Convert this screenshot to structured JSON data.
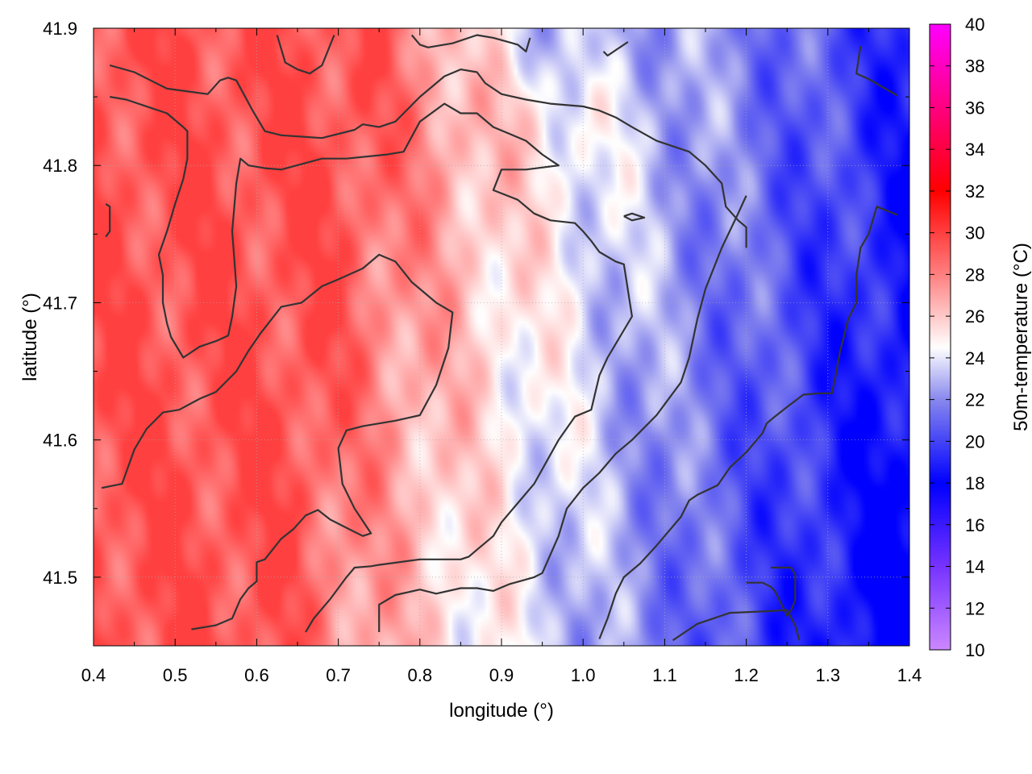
{
  "chart_data": {
    "type": "heatmap",
    "title": "",
    "xlabel": "longitude (°)",
    "ylabel": "latitude (°)",
    "colorbar_label": "50m-temperature (°C)",
    "xlim": [
      0.4,
      1.4
    ],
    "ylim": [
      41.45,
      41.9
    ],
    "x_ticks": [
      "0.4",
      "0.5",
      "0.6",
      "0.7",
      "0.8",
      "0.9",
      "1.0",
      "1.1",
      "1.2",
      "1.3",
      "1.4"
    ],
    "y_ticks": [
      "41.5",
      "41.6",
      "41.7",
      "41.8",
      "41.9"
    ],
    "colorbar_range": [
      10,
      40
    ],
    "colorbar_ticks": [
      "10",
      "12",
      "14",
      "16",
      "18",
      "20",
      "22",
      "24",
      "26",
      "28",
      "30",
      "32",
      "34",
      "36",
      "38",
      "40"
    ],
    "grid": true,
    "colormap_stops": [
      {
        "value": 10,
        "color": "#cc88ff"
      },
      {
        "value": 14,
        "color": "#7733ff"
      },
      {
        "value": 18,
        "color": "#0000ff"
      },
      {
        "value": 22,
        "color": "#8888ee"
      },
      {
        "value": 24.5,
        "color": "#ffffff"
      },
      {
        "value": 28,
        "color": "#ff8080"
      },
      {
        "value": 32,
        "color": "#ff0000"
      },
      {
        "value": 36,
        "color": "#ff0080"
      },
      {
        "value": 40,
        "color": "#ff00ff"
      }
    ],
    "field_summary": {
      "warm_core": {
        "lon": 0.68,
        "lat": 41.66,
        "value": 29.5
      },
      "cool_core": {
        "lon": 1.32,
        "lat": 41.47,
        "value": 18.5
      },
      "range": [
        18,
        30
      ]
    },
    "contours": [
      {
        "level": 26,
        "points": [
          [
            0.42,
            41.873
          ],
          [
            0.45,
            41.868
          ],
          [
            0.47,
            41.862
          ],
          [
            0.49,
            41.856
          ],
          [
            0.54,
            41.852
          ],
          [
            0.555,
            41.862
          ],
          [
            0.565,
            41.864
          ],
          [
            0.575,
            41.862
          ],
          [
            0.595,
            41.84
          ],
          [
            0.61,
            41.825
          ],
          [
            0.63,
            41.822
          ],
          [
            0.68,
            41.82
          ],
          [
            0.72,
            41.826
          ],
          [
            0.73,
            41.83
          ],
          [
            0.75,
            41.828
          ],
          [
            0.77,
            41.832
          ],
          [
            0.78,
            41.838
          ],
          [
            0.8,
            41.85
          ],
          [
            0.83,
            41.865
          ],
          [
            0.85,
            41.87
          ],
          [
            0.87,
            41.868
          ],
          [
            0.88,
            41.86
          ],
          [
            0.9,
            41.852
          ],
          [
            0.93,
            41.848
          ],
          [
            0.96,
            41.845
          ],
          [
            1.0,
            41.843
          ],
          [
            1.02,
            41.84
          ],
          [
            1.04,
            41.835
          ],
          [
            1.06,
            41.828
          ],
          [
            1.09,
            41.818
          ],
          [
            1.13,
            41.81
          ],
          [
            1.15,
            41.8
          ],
          [
            1.17,
            41.787
          ],
          [
            1.175,
            41.77
          ],
          [
            1.19,
            41.76
          ],
          [
            1.2,
            41.755
          ],
          [
            1.2,
            41.74
          ]
        ]
      },
      {
        "level": 26,
        "points": [
          [
            0.42,
            41.85
          ],
          [
            0.44,
            41.848
          ],
          [
            0.46,
            41.844
          ],
          [
            0.49,
            41.838
          ],
          [
            0.51,
            41.828
          ],
          [
            0.515,
            41.825
          ],
          [
            0.515,
            41.805
          ],
          [
            0.51,
            41.79
          ],
          [
            0.5,
            41.772
          ],
          [
            0.49,
            41.752
          ],
          [
            0.48,
            41.735
          ],
          [
            0.485,
            41.72
          ],
          [
            0.485,
            41.7
          ],
          [
            0.49,
            41.685
          ],
          [
            0.495,
            41.675
          ],
          [
            0.51,
            41.66
          ],
          [
            0.53,
            41.668
          ],
          [
            0.55,
            41.672
          ],
          [
            0.565,
            41.676
          ],
          [
            0.57,
            41.69
          ],
          [
            0.575,
            41.712
          ],
          [
            0.57,
            41.752
          ],
          [
            0.575,
            41.787
          ],
          [
            0.58,
            41.805
          ],
          [
            0.59,
            41.8
          ],
          [
            0.61,
            41.798
          ],
          [
            0.63,
            41.797
          ],
          [
            0.68,
            41.805
          ],
          [
            0.71,
            41.805
          ],
          [
            0.76,
            41.808
          ],
          [
            0.78,
            41.81
          ],
          [
            0.8,
            41.832
          ],
          [
            0.83,
            41.845
          ],
          [
            0.85,
            41.838
          ],
          [
            0.87,
            41.838
          ],
          [
            0.89,
            41.828
          ],
          [
            0.93,
            41.818
          ],
          [
            0.95,
            41.808
          ],
          [
            0.97,
            41.8
          ],
          [
            0.93,
            41.797
          ],
          [
            0.9,
            41.797
          ],
          [
            0.89,
            41.782
          ],
          [
            0.92,
            41.775
          ],
          [
            0.94,
            41.765
          ],
          [
            0.96,
            41.76
          ],
          [
            0.99,
            41.758
          ],
          [
            1.0,
            41.752
          ],
          [
            1.01,
            41.745
          ],
          [
            1.02,
            41.737
          ],
          [
            1.04,
            41.73
          ],
          [
            1.05,
            41.728
          ],
          [
            1.06,
            41.69
          ],
          [
            1.05,
            41.68
          ],
          [
            1.03,
            41.66
          ],
          [
            1.02,
            41.647
          ],
          [
            1.01,
            41.622
          ],
          [
            0.99,
            41.617
          ],
          [
            0.97,
            41.6
          ],
          [
            0.94,
            41.568
          ],
          [
            0.92,
            41.554
          ],
          [
            0.9,
            41.54
          ],
          [
            0.89,
            41.53
          ],
          [
            0.87,
            41.52
          ],
          [
            0.86,
            41.515
          ],
          [
            0.85,
            41.513
          ],
          [
            0.8,
            41.513
          ],
          [
            0.75,
            41.509
          ],
          [
            0.74,
            41.508
          ],
          [
            0.72,
            41.507
          ],
          [
            0.71,
            41.5
          ],
          [
            0.69,
            41.484
          ],
          [
            0.67,
            41.47
          ],
          [
            0.66,
            41.46
          ]
        ]
      },
      {
        "level": 26,
        "points": [
          [
            0.415,
            41.772
          ],
          [
            0.42,
            41.77
          ],
          [
            0.42,
            41.752
          ],
          [
            0.415,
            41.748
          ]
        ]
      },
      {
        "level": 26,
        "points": [
          [
            0.41,
            41.565
          ],
          [
            0.435,
            41.568
          ],
          [
            0.45,
            41.593
          ],
          [
            0.465,
            41.608
          ],
          [
            0.485,
            41.62
          ],
          [
            0.505,
            41.622
          ],
          [
            0.53,
            41.63
          ],
          [
            0.55,
            41.635
          ],
          [
            0.575,
            41.65
          ],
          [
            0.59,
            41.665
          ],
          [
            0.605,
            41.678
          ],
          [
            0.63,
            41.697
          ],
          [
            0.655,
            41.7
          ],
          [
            0.68,
            41.712
          ],
          [
            0.7,
            41.717
          ],
          [
            0.73,
            41.725
          ],
          [
            0.75,
            41.735
          ],
          [
            0.77,
            41.73
          ],
          [
            0.79,
            41.715
          ],
          [
            0.82,
            41.7
          ],
          [
            0.84,
            41.693
          ],
          [
            0.835,
            41.667
          ],
          [
            0.82,
            41.64
          ],
          [
            0.8,
            41.618
          ],
          [
            0.77,
            41.614
          ],
          [
            0.73,
            41.61
          ],
          [
            0.71,
            41.607
          ],
          [
            0.7,
            41.594
          ],
          [
            0.705,
            41.568
          ],
          [
            0.72,
            41.55
          ],
          [
            0.74,
            41.532
          ],
          [
            0.73,
            41.53
          ],
          [
            0.71,
            41.536
          ],
          [
            0.69,
            41.542
          ],
          [
            0.675,
            41.549
          ],
          [
            0.66,
            41.545
          ],
          [
            0.645,
            41.535
          ],
          [
            0.63,
            41.528
          ],
          [
            0.61,
            41.513
          ],
          [
            0.6,
            41.511
          ],
          [
            0.6,
            41.497
          ],
          [
            0.59,
            41.492
          ],
          [
            0.58,
            41.484
          ],
          [
            0.57,
            41.47
          ],
          [
            0.55,
            41.465
          ],
          [
            0.52,
            41.462
          ]
        ]
      },
      {
        "level": 24,
        "points": [
          [
            0.625,
            41.895
          ],
          [
            0.635,
            41.875
          ],
          [
            0.65,
            41.87
          ],
          [
            0.665,
            41.867
          ],
          [
            0.68,
            41.873
          ],
          [
            0.695,
            41.895
          ]
        ]
      },
      {
        "level": 24,
        "points": [
          [
            0.79,
            41.895
          ],
          [
            0.8,
            41.888
          ],
          [
            0.81,
            41.886
          ],
          [
            0.84,
            41.889
          ],
          [
            0.87,
            41.895
          ],
          [
            0.89,
            41.893
          ],
          [
            0.92,
            41.888
          ],
          [
            0.93,
            41.883
          ],
          [
            0.935,
            41.893
          ]
        ]
      },
      {
        "level": 24,
        "points": [
          [
            1.025,
            41.883
          ],
          [
            1.03,
            41.88
          ],
          [
            1.055,
            41.89
          ]
        ]
      },
      {
        "level": 24,
        "points": [
          [
            1.34,
            41.887
          ],
          [
            1.335,
            41.867
          ],
          [
            1.35,
            41.863
          ],
          [
            1.385,
            41.851
          ]
        ]
      },
      {
        "level": 24,
        "points": [
          [
            1.05,
            41.763
          ],
          [
            1.06,
            41.765
          ],
          [
            1.075,
            41.762
          ],
          [
            1.06,
            41.76
          ],
          [
            1.05,
            41.763
          ]
        ]
      },
      {
        "level": 24,
        "points": [
          [
            1.02,
            41.455
          ],
          [
            1.03,
            41.47
          ],
          [
            1.04,
            41.488
          ],
          [
            1.05,
            41.5
          ],
          [
            1.07,
            41.51
          ],
          [
            1.09,
            41.523
          ],
          [
            1.12,
            41.544
          ],
          [
            1.13,
            41.556
          ],
          [
            1.14,
            41.56
          ],
          [
            1.165,
            41.567
          ],
          [
            1.18,
            41.58
          ],
          [
            1.2,
            41.591
          ],
          [
            1.22,
            41.605
          ],
          [
            1.225,
            41.612
          ],
          [
            1.235,
            41.617
          ],
          [
            1.25,
            41.624
          ],
          [
            1.27,
            41.633
          ],
          [
            1.29,
            41.634
          ],
          [
            1.305,
            41.634
          ],
          [
            1.31,
            41.648
          ],
          [
            1.315,
            41.665
          ],
          [
            1.32,
            41.676
          ],
          [
            1.325,
            41.688
          ],
          [
            1.335,
            41.7
          ],
          [
            1.335,
            41.72
          ],
          [
            1.34,
            41.74
          ],
          [
            1.35,
            41.75
          ],
          [
            1.36,
            41.77
          ],
          [
            1.385,
            41.764
          ]
        ]
      },
      {
        "level": 22,
        "points": [
          [
            1.23,
            41.507
          ],
          [
            1.255,
            41.507
          ],
          [
            1.26,
            41.502
          ],
          [
            1.26,
            41.483
          ],
          [
            1.255,
            41.476
          ],
          [
            1.25,
            41.472
          ],
          [
            1.235,
            41.49
          ],
          [
            1.23,
            41.493
          ],
          [
            1.22,
            41.496
          ],
          [
            1.2,
            41.496
          ]
        ]
      },
      {
        "level": 24,
        "points": [
          [
            1.11,
            41.454
          ],
          [
            1.125,
            41.46
          ],
          [
            1.14,
            41.466
          ],
          [
            1.18,
            41.474
          ],
          [
            1.22,
            41.475
          ],
          [
            1.25,
            41.476
          ],
          [
            1.26,
            41.465
          ],
          [
            1.265,
            41.454
          ]
        ]
      },
      {
        "level": 24,
        "points": [
          [
            0.75,
            41.46
          ],
          [
            0.75,
            41.48
          ],
          [
            0.77,
            41.487
          ],
          [
            0.8,
            41.491
          ],
          [
            0.82,
            41.488
          ],
          [
            0.85,
            41.492
          ],
          [
            0.87,
            41.492
          ],
          [
            0.89,
            41.49
          ],
          [
            0.91,
            41.495
          ],
          [
            0.94,
            41.5
          ],
          [
            0.95,
            41.503
          ],
          [
            0.97,
            41.53
          ],
          [
            0.98,
            41.55
          ],
          [
            1.0,
            41.565
          ],
          [
            1.02,
            41.576
          ],
          [
            1.04,
            41.59
          ],
          [
            1.06,
            41.6
          ],
          [
            1.09,
            41.618
          ],
          [
            1.12,
            41.642
          ],
          [
            1.13,
            41.66
          ],
          [
            1.14,
            41.688
          ],
          [
            1.15,
            41.71
          ],
          [
            1.17,
            41.74
          ],
          [
            1.19,
            41.765
          ],
          [
            1.2,
            41.778
          ]
        ]
      }
    ]
  }
}
